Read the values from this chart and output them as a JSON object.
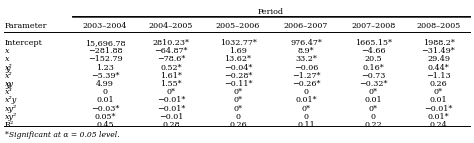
{
  "title": "Period",
  "col_header": [
    "Parameter",
    "2003–2004",
    "2004–2005",
    "2005–2006",
    "2006–2007",
    "2007–2008",
    "2008–2005"
  ],
  "rows": [
    [
      "Intercept",
      "15,696.78",
      "2810.23*",
      "1032.77*",
      "976.47*",
      "1665.15*",
      "1988.2*"
    ],
    [
      "x",
      "−281.88",
      "−64.87*",
      "1.69",
      "8.9*",
      "−4.66",
      "−31.49*"
    ],
    [
      "x y",
      "−152.79",
      "−78.6*",
      "13.62*",
      "33.2*",
      "20.5",
      "29.49"
    ],
    [
      "x²",
      "1.23",
      "0.52*",
      "−0.04*",
      "−0.06",
      "0.16*",
      "0.44*"
    ],
    [
      "x² y",
      "−5.39*",
      "1.61*",
      "−0.28*",
      "−1.27*",
      "−0.73",
      "−1.13"
    ],
    [
      "xy",
      "4.99",
      "1.55*",
      "−0.11*",
      "−0.26*",
      "−0.32*",
      "0.26"
    ],
    [
      "x³",
      "0",
      "0*",
      "0*",
      "0",
      "0*",
      "0*"
    ],
    [
      "x² y",
      "0.01",
      "−0.01*",
      "0*",
      "0.01*",
      "0.01",
      "0.01"
    ],
    [
      "xy²",
      "−0.03*",
      "−0.01*",
      "0*",
      "0*",
      "0*",
      "−0.01*"
    ],
    [
      "xy²",
      "0.05*",
      "−0.01",
      "0",
      "0",
      "0",
      "0.01*"
    ],
    [
      "R²",
      "0.45",
      "0.28",
      "0.26",
      "0.11",
      "0.22",
      "0.24"
    ]
  ],
  "param_labels": [
    "Intercept",
    "x",
    "x\ny",
    "x²",
    "x²\ny",
    "xy",
    "x³",
    "x²\ny",
    "xy²",
    "xy²",
    "R²"
  ],
  "footnote": "*Significant at α = 0.05 level.",
  "font_size": 5.8,
  "header_font_size": 5.8,
  "bg_color": "#ffffff"
}
